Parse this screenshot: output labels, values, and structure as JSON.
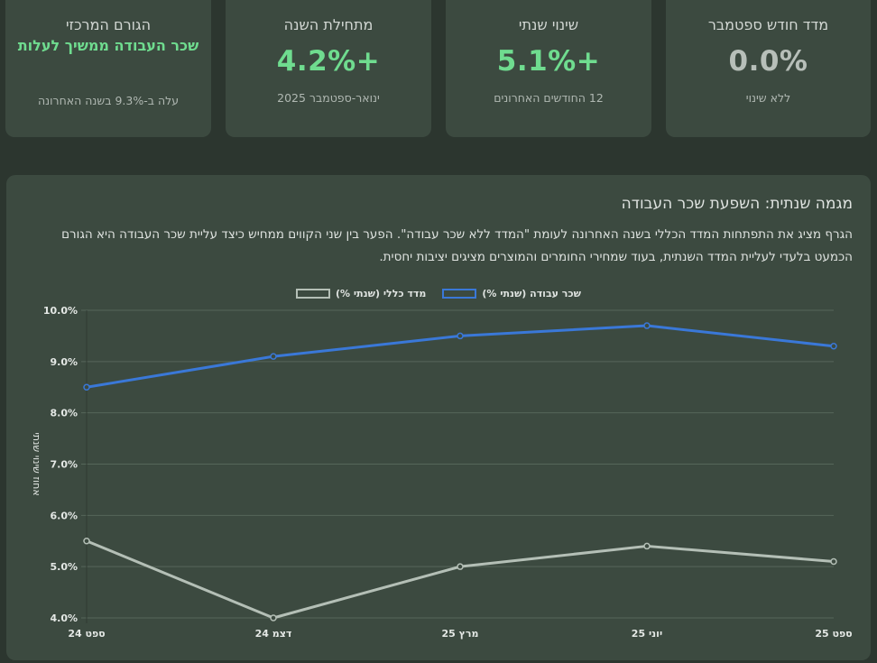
{
  "cards": [
    {
      "title": "מדד חודש ספטמבר",
      "value": "0.0%",
      "sub": "ללא שינוי",
      "tone": "neutral"
    },
    {
      "title": "שינוי שנתי",
      "value": "+5.1%",
      "sub": "12 החודשים האחרונים",
      "tone": "positive"
    },
    {
      "title": "מתחילת השנה",
      "value": "+4.2%",
      "sub": "ינואר-ספטמבר 2025",
      "tone": "positive"
    },
    {
      "title": "הגורם המרכזי",
      "text": "שכר העבודה ממשיך לעלות",
      "sub": "עלה ב-9.3% בשנה האחרונה",
      "tone": "positive"
    }
  ],
  "panel": {
    "title": "מגמה שנתית: השפעת שכר העבודה",
    "description": "הגרף מציג את התפתחות המדד הכללי בשנה האחרונה לעומת \"המדד ללא שכר עבודה\". הפער בין שני הקווים ממחיש כיצד עליית שכר העבודה היא הגורם הכמעט בלעדי לעליית המדד השנתית, בעוד שמחירי החומרים והמוצרים מציגים יציבות יחסית."
  },
  "colors": {
    "background": "#2c362f",
    "card": "#3c4a40",
    "positive": "#6fdc8f",
    "labor_line": "#3a78d8",
    "general_line": "#b4bfb6",
    "grid": "#56665a"
  },
  "chart_data": {
    "type": "line",
    "title": "",
    "xlabel": "",
    "ylabel": "אחוז שינוי שנתי",
    "categories": [
      "ספט 24",
      "דצמ 24",
      "מרץ 25",
      "יוני 25",
      "ספט 25"
    ],
    "ylim": [
      4.0,
      10.0
    ],
    "yticks": [
      "4.0%",
      "5.0%",
      "6.0%",
      "7.0%",
      "8.0%",
      "9.0%",
      "10.0%"
    ],
    "ytick_values": [
      4,
      5,
      6,
      7,
      8,
      9,
      10
    ],
    "grid": true,
    "legend_position": "top-center",
    "series": [
      {
        "name": "שכר עבודה (שנתי %)",
        "values": [
          8.5,
          9.1,
          9.5,
          9.7,
          9.3
        ],
        "color": "#3a78d8"
      },
      {
        "name": "מדד כללי (שנתי %)",
        "values": [
          5.5,
          4.0,
          5.0,
          5.4,
          5.1
        ],
        "color": "#b4bfb6"
      }
    ]
  }
}
